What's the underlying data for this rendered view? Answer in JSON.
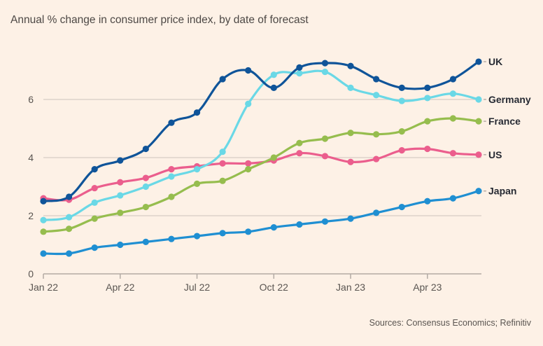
{
  "chart_data": {
    "type": "line",
    "title": "Annual % change in consumer price index, by date of forecast",
    "source": "Sources: Consensus Economics; Refinitiv",
    "xlabel": "",
    "ylabel": "",
    "ylim": [
      0,
      7.5
    ],
    "yticks": [
      0,
      2,
      4,
      6
    ],
    "grid": true,
    "x": [
      "Jan 22",
      "Feb 22",
      "Mar 22",
      "Apr 22",
      "May 22",
      "Jun 22",
      "Jul 22",
      "Aug 22",
      "Sep 22",
      "Oct 22",
      "Nov 22",
      "Dec 22",
      "Jan 23",
      "Feb 23",
      "Mar 23",
      "Apr 23",
      "May 23",
      "Jun 23"
    ],
    "xticks": [
      {
        "label": "Jan 22",
        "index": 0
      },
      {
        "label": "Apr 22",
        "index": 3
      },
      {
        "label": "Jul 22",
        "index": 6
      },
      {
        "label": "Oct 22",
        "index": 9
      },
      {
        "label": "Jan 23",
        "index": 12
      },
      {
        "label": "Apr 23",
        "index": 15
      }
    ],
    "legend": "right-end-labels",
    "series": [
      {
        "name": "UK",
        "color": "#0f5499",
        "values": [
          2.5,
          2.65,
          3.6,
          3.9,
          4.3,
          5.2,
          5.55,
          6.7,
          7.0,
          6.4,
          7.1,
          7.25,
          7.15,
          6.7,
          6.4,
          6.4,
          6.7,
          7.3
        ]
      },
      {
        "name": "Germany",
        "color": "#6ad8e6",
        "values": [
          1.85,
          1.95,
          2.45,
          2.7,
          3.0,
          3.35,
          3.6,
          4.2,
          5.85,
          6.85,
          6.9,
          6.95,
          6.4,
          6.15,
          5.95,
          6.05,
          6.2,
          6.0
        ]
      },
      {
        "name": "France",
        "color": "#96bd4e",
        "values": [
          1.45,
          1.55,
          1.9,
          2.1,
          2.3,
          2.65,
          3.1,
          3.2,
          3.6,
          4.0,
          4.5,
          4.65,
          4.85,
          4.8,
          4.9,
          5.25,
          5.35,
          5.25
        ]
      },
      {
        "name": "US",
        "color": "#eb5e8d",
        "values": [
          2.6,
          2.55,
          2.95,
          3.15,
          3.3,
          3.6,
          3.7,
          3.8,
          3.8,
          3.9,
          4.15,
          4.05,
          3.85,
          3.95,
          4.25,
          4.3,
          4.15,
          4.1
        ]
      },
      {
        "name": "Japan",
        "color": "#1f8fd2",
        "values": [
          0.7,
          0.7,
          0.9,
          1.0,
          1.1,
          1.2,
          1.3,
          1.4,
          1.45,
          1.6,
          1.7,
          1.8,
          1.9,
          2.1,
          2.3,
          2.5,
          2.6,
          2.85
        ]
      }
    ]
  }
}
